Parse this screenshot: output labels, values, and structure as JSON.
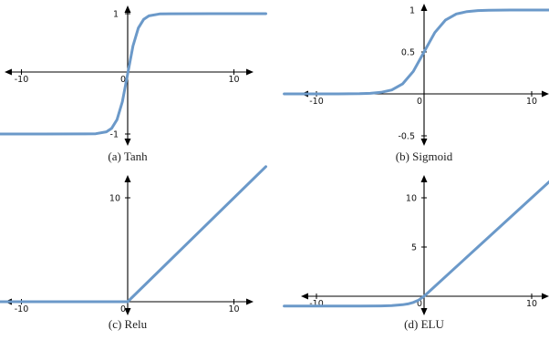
{
  "colors": {
    "curve": "#6b99c9",
    "axis": "#000000",
    "background": "#ffffff"
  },
  "chart_data": [
    {
      "type": "line",
      "function": "tanh",
      "caption": "(a) Tanh",
      "xlim": [
        -13.5,
        13.5
      ],
      "ylim": [
        -1.1,
        1.1
      ],
      "x_ticks": [
        -10,
        0,
        10
      ],
      "x_tick_labels": [
        "-10",
        "0",
        "10"
      ],
      "y_ticks": [
        1,
        -1
      ],
      "y_tick_labels": [
        "1",
        "-1"
      ],
      "series": [
        {
          "x": [
            -13,
            -8,
            -4,
            -3,
            -2,
            -1.5,
            -1,
            -0.5,
            0,
            0.5,
            1,
            1.5,
            2,
            3,
            4,
            8,
            13
          ],
          "y": [
            -1,
            -1,
            -0.999,
            -0.995,
            -0.964,
            -0.905,
            -0.762,
            -0.462,
            0,
            0.462,
            0.762,
            0.905,
            0.964,
            0.995,
            0.999,
            1,
            1
          ]
        }
      ]
    },
    {
      "type": "line",
      "function": "sigmoid",
      "caption": "(b) Sigmoid",
      "xlim": [
        -13.5,
        13.5
      ],
      "ylim": [
        -0.6,
        1.05
      ],
      "x_ticks": [
        -10,
        0,
        10
      ],
      "x_tick_labels": [
        "-10",
        "0",
        "10"
      ],
      "y_ticks": [
        1,
        0.5,
        -0.5
      ],
      "y_tick_labels": [
        "1",
        "0.5",
        "-0.5"
      ],
      "series": [
        {
          "x": [
            -13,
            -10,
            -8,
            -6,
            -5,
            -4,
            -3,
            -2,
            -1,
            0,
            1,
            2,
            3,
            4,
            5,
            6,
            8,
            10,
            13
          ],
          "y": [
            0,
            0,
            0,
            0.002,
            0.007,
            0.018,
            0.047,
            0.119,
            0.269,
            0.5,
            0.731,
            0.881,
            0.953,
            0.982,
            0.993,
            0.998,
            1,
            1,
            1
          ]
        }
      ]
    },
    {
      "type": "line",
      "function": "relu",
      "caption": "(c) Relu",
      "xlim": [
        -13.5,
        13.5
      ],
      "ylim": [
        -1.8,
        13.5
      ],
      "x_ticks": [
        -10,
        0,
        10
      ],
      "x_tick_labels": [
        "-10",
        "0",
        "10"
      ],
      "y_ticks": [
        10
      ],
      "y_tick_labels": [
        "10"
      ],
      "series": [
        {
          "x": [
            -13,
            0,
            13
          ],
          "y": [
            0,
            0,
            13
          ]
        }
      ]
    },
    {
      "type": "line",
      "function": "elu",
      "caption": "(d) ELU",
      "xlim": [
        -13.5,
        13.5
      ],
      "ylim": [
        -1.8,
        13.5
      ],
      "x_ticks": [
        -10,
        0,
        10
      ],
      "x_tick_labels": [
        "-10",
        "0",
        "10"
      ],
      "y_ticks": [
        10,
        5
      ],
      "y_tick_labels": [
        "10",
        "5"
      ],
      "series": [
        {
          "x": [
            -13,
            -8,
            -6,
            -4,
            -3,
            -2,
            -1.5,
            -1,
            -0.5,
            0,
            5,
            10,
            13
          ],
          "y": [
            -1,
            -1,
            -0.998,
            -0.982,
            -0.95,
            -0.865,
            -0.777,
            -0.632,
            -0.393,
            0,
            5,
            10,
            13
          ]
        }
      ]
    }
  ]
}
